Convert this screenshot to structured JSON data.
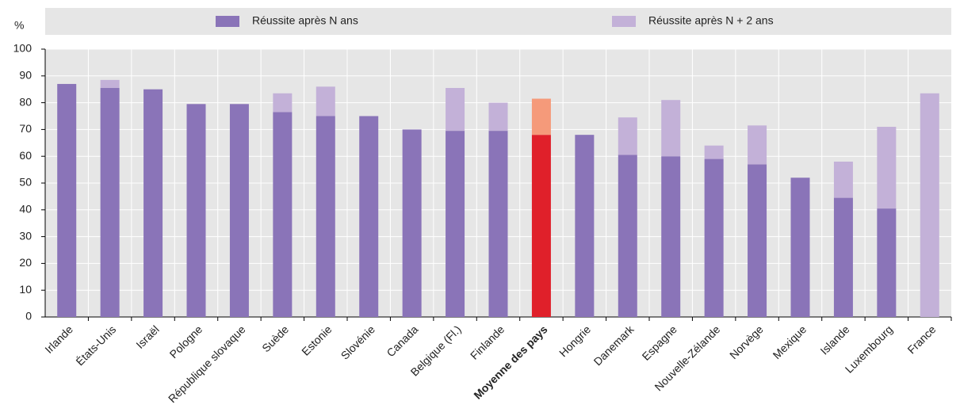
{
  "chart_data": {
    "type": "stacked-bar",
    "y_unit": "%",
    "categories": [
      "Irlande",
      "États-Unis",
      "Israël",
      "Pologne",
      "République slovaque",
      "Suède",
      "Estonie",
      "Slovénie",
      "Canada",
      "Belgique (Fl.)",
      "Finlande",
      "Moyenne des pays",
      "Hongrie",
      "Danemark",
      "Espagne",
      "Nouvelle-Zélande",
      "Norvège",
      "Mexique",
      "Islande",
      "Luxembourg",
      "France"
    ],
    "series": [
      {
        "name": "Réussite après N ans",
        "color": "#8a74b8",
        "highlight_color": "#e0202a",
        "values": [
          87,
          85.5,
          85,
          79.5,
          79.5,
          76.5,
          75,
          75,
          70,
          69.5,
          69.5,
          68,
          68,
          60.5,
          60,
          59,
          57,
          52,
          44.5,
          40.5,
          null
        ]
      },
      {
        "name": "Réussite après N + 2 ans",
        "color": "#c3b1d8",
        "highlight_color": "#f59a7a",
        "values": [
          null,
          3,
          null,
          null,
          null,
          7,
          11,
          null,
          null,
          16,
          10.5,
          13.5,
          null,
          14,
          21,
          5,
          14.5,
          null,
          13.5,
          30.5,
          83.5
        ]
      }
    ],
    "highlight_index": 11,
    "ylim": [
      0,
      100
    ],
    "yticks": [
      0,
      10,
      20,
      30,
      40,
      50,
      60,
      70,
      80,
      90,
      100
    ],
    "grid": true
  }
}
